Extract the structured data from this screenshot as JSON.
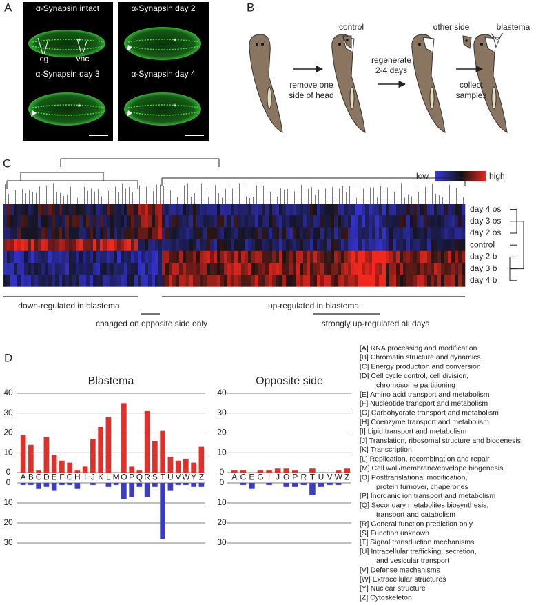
{
  "panel_labels": [
    "A",
    "B",
    "C",
    "D"
  ],
  "panel_a": {
    "images": [
      "α-Synapsin intact",
      "α-Synapsin day 2",
      "α-Synapsin day 3",
      "α-Synapsin day 4"
    ],
    "labels": [
      "cg",
      "vnc"
    ],
    "marker": "*"
  },
  "panel_b": {
    "steps": [
      [
        "remove one",
        "side of head"
      ],
      [
        "regenerate",
        "2-4 days"
      ],
      [
        "collect",
        "samples"
      ]
    ],
    "labels": [
      "control",
      "other side",
      "blastema"
    ]
  },
  "panel_c": {
    "scale": [
      "low",
      "high"
    ],
    "rows": [
      "day 4 os",
      "day 3 os",
      "day 2 os",
      "control",
      "day 2 b",
      "day 3 b",
      "day 4 b"
    ],
    "annotations": [
      "down-regulated in blastema",
      "up-regulated in blastema",
      "changed on opposite side only",
      "strongly up-regulated all days"
    ]
  },
  "chart_data": [
    {
      "type": "bar",
      "title": "Blastema",
      "categories": [
        "A",
        "B",
        "C",
        "D",
        "E",
        "F",
        "G",
        "H",
        "I",
        "J",
        "K",
        "L",
        "M",
        "O",
        "P",
        "Q",
        "R",
        "S",
        "T",
        "U",
        "V",
        "W",
        "Y",
        "Z"
      ],
      "series": [
        {
          "color": "#e0302b",
          "values": [
            19,
            14,
            1,
            18,
            9,
            6,
            5,
            1,
            3,
            17,
            23,
            28,
            0,
            35,
            3,
            1,
            31,
            16,
            21,
            8,
            6,
            7,
            5,
            13
          ]
        },
        {
          "color": "#3c3cc0",
          "axis": "y2",
          "values": [
            1,
            1,
            3,
            2,
            4,
            1,
            1,
            3,
            0,
            1,
            0,
            2,
            1,
            8,
            7,
            2,
            7,
            2,
            28,
            4,
            1,
            1,
            2,
            2
          ]
        }
      ],
      "ylim": [
        0,
        40
      ],
      "yticks": [
        0,
        10,
        20,
        30,
        40
      ],
      "y2lim": [
        0,
        30
      ],
      "y2ticks": [
        0,
        10,
        20,
        30
      ],
      "grid": true
    },
    {
      "type": "bar",
      "title": "Opposite side",
      "categories": [
        "A",
        "C",
        "E",
        "G",
        "I",
        "J",
        "O",
        "P",
        "R",
        "T",
        "U",
        "V",
        "W",
        "Z"
      ],
      "series": [
        {
          "color": "#e0302b",
          "values": [
            1,
            1,
            0,
            1,
            1,
            2,
            2,
            1,
            0,
            2,
            0,
            0,
            1,
            2
          ]
        },
        {
          "color": "#3c3cc0",
          "axis": "y2",
          "values": [
            0,
            1,
            3,
            0,
            1,
            0,
            2,
            2,
            1,
            6,
            2,
            1,
            1,
            0
          ]
        }
      ],
      "ylim": [
        0,
        40
      ],
      "yticks": [
        0,
        10,
        20,
        30,
        40
      ],
      "y2lim": [
        0,
        30
      ],
      "y2ticks": [
        0,
        10,
        20,
        30
      ],
      "grid": true
    }
  ],
  "cog_legend": [
    [
      "[A] RNA processing and modification"
    ],
    [
      "[B] Chromatin structure and dynamics"
    ],
    [
      "[C] Energy production and conversion"
    ],
    [
      "[D] Cell cycle control, cell division,",
      "chromosome partitioning"
    ],
    [
      "[E] Amino acid transport and metabolism"
    ],
    [
      "[F] Nucleotide transport and metabolism"
    ],
    [
      "[G] Carbohydrate transport and metabolism"
    ],
    [
      "[H] Coenzyme transport and metabolism"
    ],
    [
      "[I] Lipid transport and metabolism"
    ],
    [
      "[J] Translation, ribosomal structure and biogenesis"
    ],
    [
      "[K] Transcription"
    ],
    [
      "[L] Replication, recombination and repair"
    ],
    [
      "[M] Cell wall/membrane/envelope biogenesis"
    ],
    [
      "[O] Posttranslational modification,",
      "protein turnover, chaperones"
    ],
    [
      "[P] Inorganic ion transport and metabolism"
    ],
    [
      "[Q] Secondary metabolites biosynthesis,",
      "transport and catabolism"
    ],
    [
      "[R] General function prediction only"
    ],
    [
      "[S] Function unknown"
    ],
    [
      "[T] Signal transduction mechanisms"
    ],
    [
      "[U] Intracellular trafficking, secretion,",
      "and vesicular transport"
    ],
    [
      "[V] Defense mechanisms"
    ],
    [
      "[W] Extracellular structures"
    ],
    [
      "[Y] Nuclear structure"
    ],
    [
      "[Z] Cytoskeleton"
    ]
  ]
}
